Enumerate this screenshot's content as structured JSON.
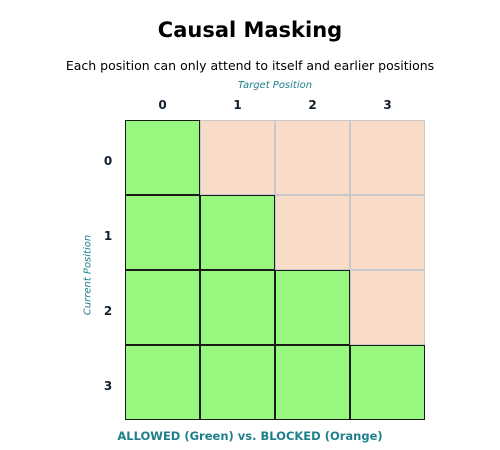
{
  "title": "Causal Masking",
  "subtitle": "Each position can only attend to itself and earlier positions",
  "x_axis_label": "Target Position",
  "y_axis_label": "Current Position",
  "x_ticks": [
    "0",
    "1",
    "2",
    "3"
  ],
  "y_ticks": [
    "0",
    "1",
    "2",
    "3"
  ],
  "legend_caption": "ALLOWED (Green) vs. BLOCKED (Orange)",
  "colors": {
    "allowed": "#98f77f",
    "blocked": "#f8dcc8",
    "accent": "#1e7f8a"
  },
  "mask": [
    [
      1,
      0,
      0,
      0
    ],
    [
      1,
      1,
      0,
      0
    ],
    [
      1,
      1,
      1,
      0
    ],
    [
      1,
      1,
      1,
      1
    ]
  ]
}
